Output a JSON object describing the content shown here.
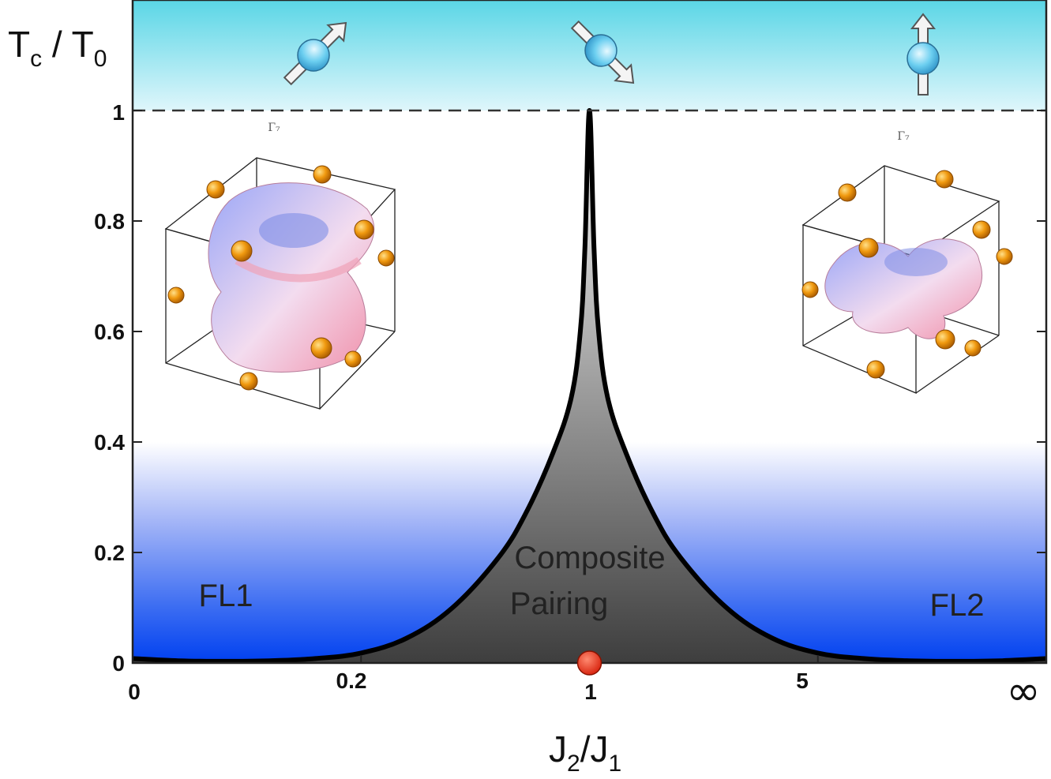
{
  "chart_data": {
    "type": "area",
    "xlabel": {
      "main": "J",
      "sub1": "2",
      "mid": "/J",
      "sub2": "1"
    },
    "ylabel": {
      "main": "T",
      "sub1": "c",
      "mid": " / T",
      "sub2": "0"
    },
    "x_ticks": [
      "0",
      "0.2",
      "1",
      "5",
      "∞"
    ],
    "y_ticks": [
      "0",
      "0.2",
      "0.4",
      "0.6",
      "0.8",
      "1"
    ],
    "ylim": [
      0,
      1
    ],
    "series": [
      {
        "values": [
          [
            0.0,
            0.008
          ],
          [
            0.05,
            0.004
          ],
          [
            0.1,
            0.003
          ],
          [
            0.15,
            0.004
          ],
          [
            0.2,
            0.008
          ],
          [
            0.25,
            0.018
          ],
          [
            0.3,
            0.045
          ],
          [
            0.35,
            0.1
          ],
          [
            0.4,
            0.19
          ],
          [
            0.43,
            0.27
          ],
          [
            0.46,
            0.38
          ],
          [
            0.48,
            0.48
          ],
          [
            0.49,
            0.6
          ],
          [
            0.495,
            0.75
          ],
          [
            0.5,
            1.0
          ],
          [
            0.505,
            0.75
          ],
          [
            0.51,
            0.6
          ],
          [
            0.52,
            0.48
          ],
          [
            0.54,
            0.38
          ],
          [
            0.57,
            0.27
          ],
          [
            0.6,
            0.19
          ],
          [
            0.65,
            0.1
          ],
          [
            0.7,
            0.045
          ],
          [
            0.75,
            0.018
          ],
          [
            0.8,
            0.008
          ],
          [
            0.85,
            0.004
          ],
          [
            0.9,
            0.003
          ],
          [
            0.95,
            0.004
          ],
          [
            1.0,
            0.008
          ]
        ]
      }
    ],
    "regions": {
      "center": [
        "Composite",
        "Pairing"
      ],
      "left": "FL1",
      "right": "FL2"
    },
    "dashed_line_y": 1,
    "critical_point_x": 0.5,
    "inset_labels": [
      "Γ₇",
      "Γ₇"
    ],
    "colors": {
      "top_band": "#5fd7e6",
      "fl_blue": "#0a4ff0",
      "pairing_dark": "#505050",
      "curve": "#000000",
      "critical_point": "#e8331c",
      "orange_ball": "#e88a12"
    },
    "icons": [
      "spin-tilted-up-icon",
      "spin-tilted-down-icon",
      "spin-vertical-icon",
      "gamma7-orbital-left-icon",
      "gamma8-orbital-right-icon"
    ]
  }
}
